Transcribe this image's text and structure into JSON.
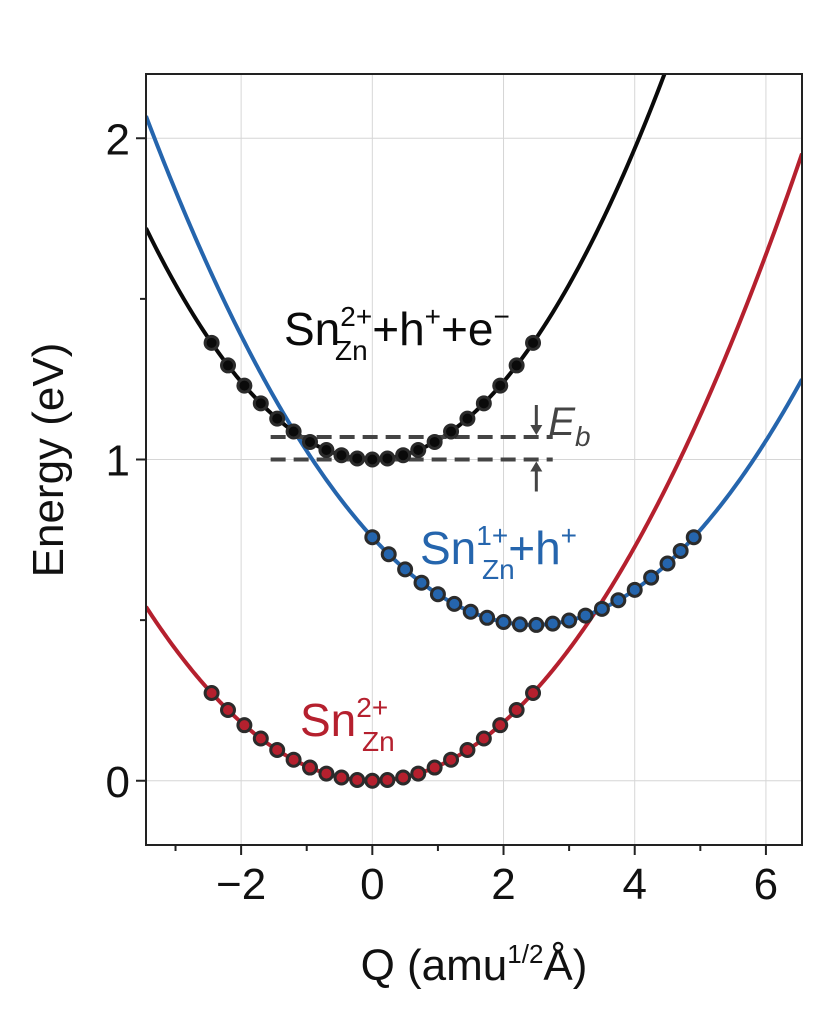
{
  "chart_data": {
    "type": "line",
    "title": "",
    "xlabel": {
      "main": "Q (amu",
      "sup": "1/2",
      "tail": "Å)"
    },
    "ylabel": "Energy (eV)",
    "xlim": [
      -3.45,
      6.55
    ],
    "ylim": [
      -0.2,
      2.2
    ],
    "x_ticks": [
      -2,
      0,
      2,
      4,
      6
    ],
    "x_tick_labels": [
      "−2",
      "0",
      "2",
      "4",
      "6"
    ],
    "x_minor_ticks": [
      -3,
      -1,
      1,
      3,
      5
    ],
    "y_ticks": [
      0,
      1,
      2
    ],
    "y_tick_labels": [
      "0",
      "1",
      "2"
    ],
    "y_minor_ticks": [
      0.5,
      1.5
    ],
    "grid": true,
    "series": [
      {
        "name": "Sn_Zn^2+",
        "color": "#b5202e",
        "curve": {
          "q0": 0.0,
          "e0": 0.0,
          "k": 0.0455
        },
        "points_x": [
          -2.45,
          -2.2,
          -1.95,
          -1.7,
          -1.45,
          -1.2,
          -0.95,
          -0.7,
          -0.47,
          -0.23,
          0.0,
          0.23,
          0.47,
          0.7,
          0.95,
          1.2,
          1.45,
          1.7,
          1.95,
          2.2,
          2.45
        ],
        "label": {
          "base": "Sn",
          "sub": "Zn",
          "sup": "2+",
          "tail": ""
        }
      },
      {
        "name": "Sn_Zn^1+ + h+",
        "color": "#2565ad",
        "curve": {
          "q0": 2.45,
          "e0": 0.485,
          "k": 0.0455
        },
        "points_x": [
          0.0,
          0.25,
          0.5,
          0.75,
          1.0,
          1.25,
          1.5,
          1.75,
          2.0,
          2.25,
          2.5,
          2.75,
          3.0,
          3.25,
          3.5,
          3.75,
          4.0,
          4.25,
          4.5,
          4.7,
          4.9
        ],
        "label": {
          "base": "Sn",
          "sub": "Zn",
          "sup": "1+",
          "tail": "+h",
          "tail_sup": "+"
        }
      },
      {
        "name": "Sn_Zn^2+ + h+ + e-",
        "color": "#0a0a0a",
        "curve": {
          "q0": 0.0,
          "e0": 1.0,
          "k": 0.0605
        },
        "points_x": [
          -2.45,
          -2.2,
          -1.95,
          -1.7,
          -1.45,
          -1.2,
          -0.95,
          -0.7,
          -0.47,
          -0.23,
          0.0,
          0.23,
          0.47,
          0.7,
          0.95,
          1.2,
          1.45,
          1.7,
          1.95,
          2.2,
          2.45
        ],
        "label": {
          "base": "Sn",
          "sub": "Zn",
          "sup": "2+",
          "tail": "+h",
          "tail_sup": "+",
          "tail2": "+e",
          "tail2_sup": "−"
        }
      }
    ],
    "annotation": {
      "label": "E",
      "label_sub": "b",
      "upper_level": 1.07,
      "lower_level": 1.0,
      "x_start": -1.55,
      "x_end": 2.75,
      "arrow_x": 2.5,
      "color": "#444444"
    }
  }
}
